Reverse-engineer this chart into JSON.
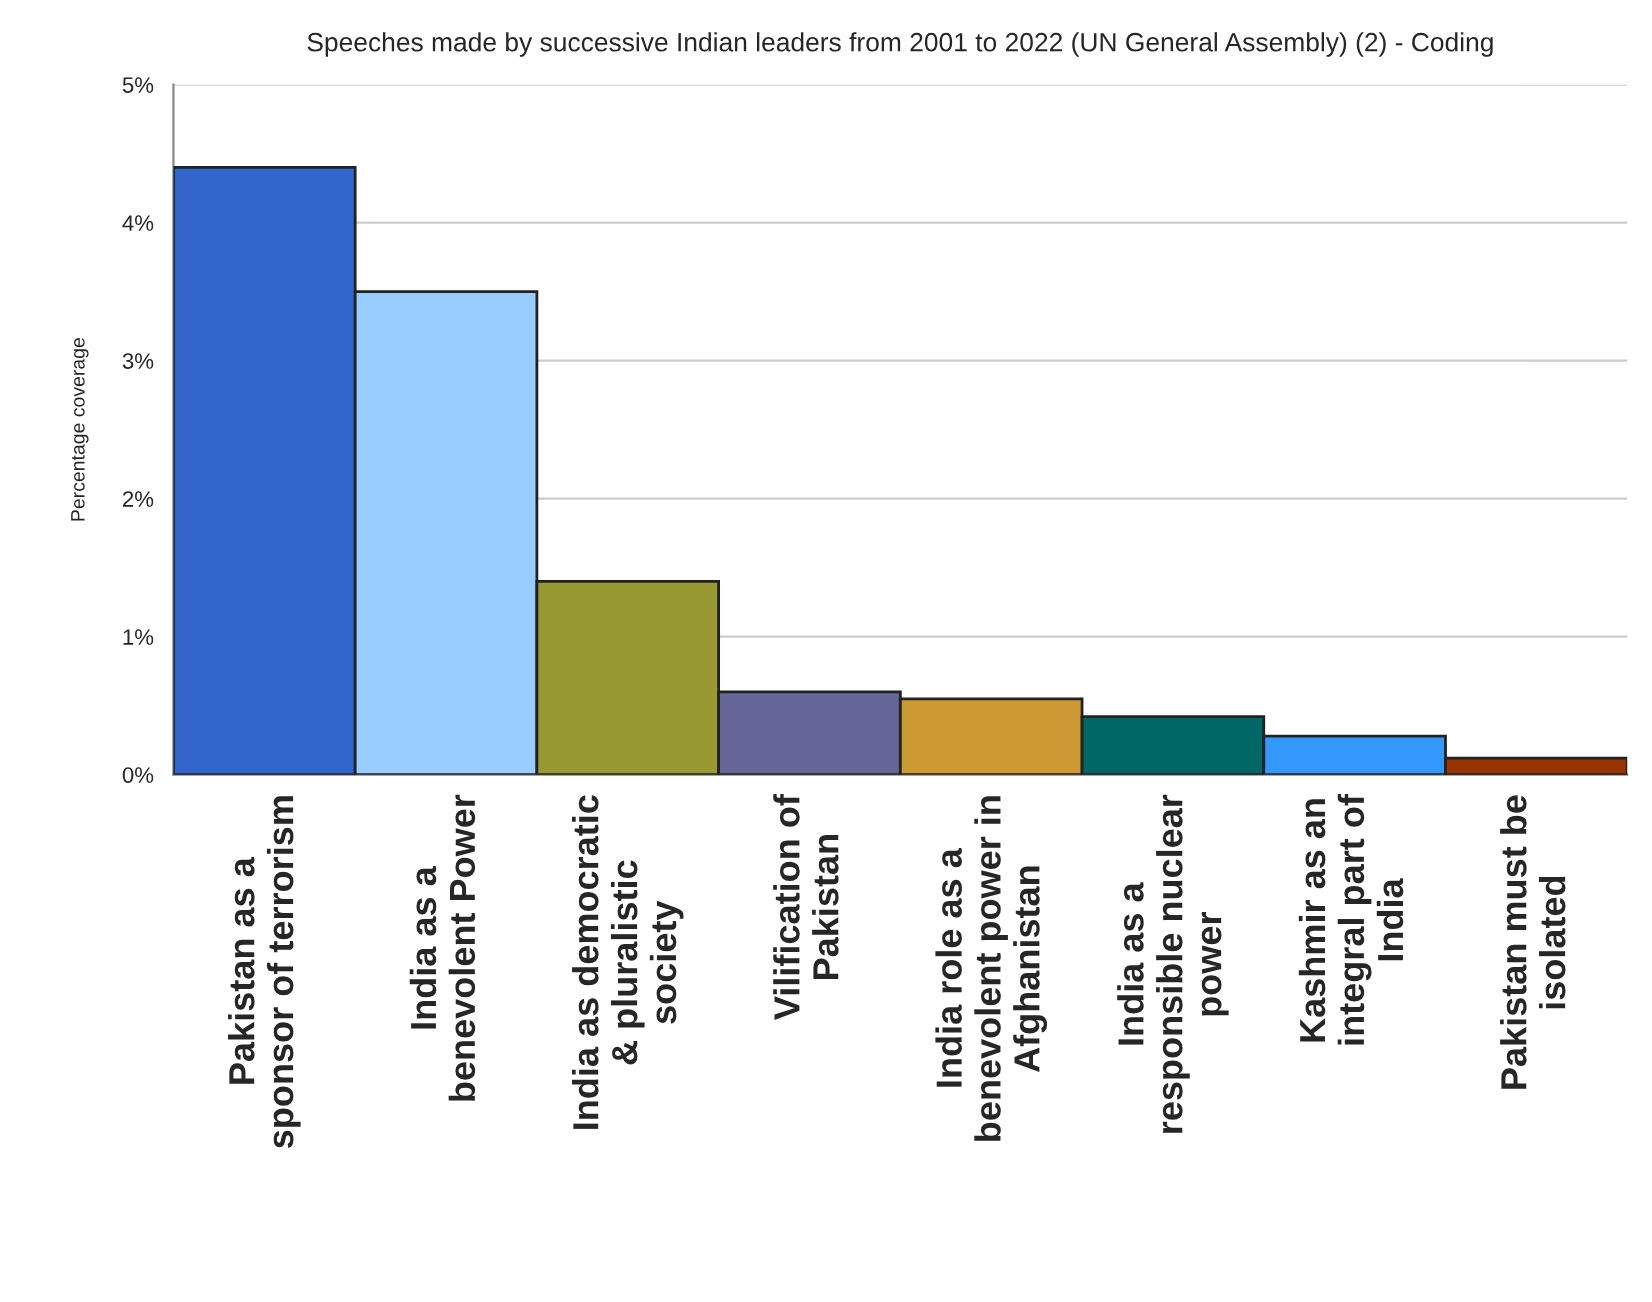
{
  "chart_data": {
    "type": "bar",
    "title": "Speeches made by successive Indian leaders from 2001 to 2022 (UN General Assembly) (2) - Coding",
    "ylabel": "Percentage coverage",
    "categories": [
      "Pakistan as a sponsor of terrorism",
      "India as a benevolent Power",
      "India as democratic & pluralistic society",
      "Vilification of Pakistan",
      "India role as a benevolent power in Afghanistan",
      "India as a responsible nuclear power",
      "Kashmir as an integral part of India",
      "Pakistan must be isolated"
    ],
    "values": [
      4.4,
      3.5,
      1.4,
      0.6,
      0.55,
      0.42,
      0.28,
      0.12
    ],
    "colors": [
      "#3366cc",
      "#99ccff",
      "#999933",
      "#666699",
      "#cc9933",
      "#006666",
      "#3399ff",
      "#993300"
    ],
    "ylim": [
      0,
      5
    ],
    "yticks": [
      {
        "value": 0,
        "label": "0%"
      },
      {
        "value": 1,
        "label": "1%"
      },
      {
        "value": 2,
        "label": "2%"
      },
      {
        "value": 3,
        "label": "3%"
      },
      {
        "value": 4,
        "label": "4%"
      },
      {
        "value": 5,
        "label": "5%"
      }
    ],
    "grid": "y",
    "legend": false
  }
}
